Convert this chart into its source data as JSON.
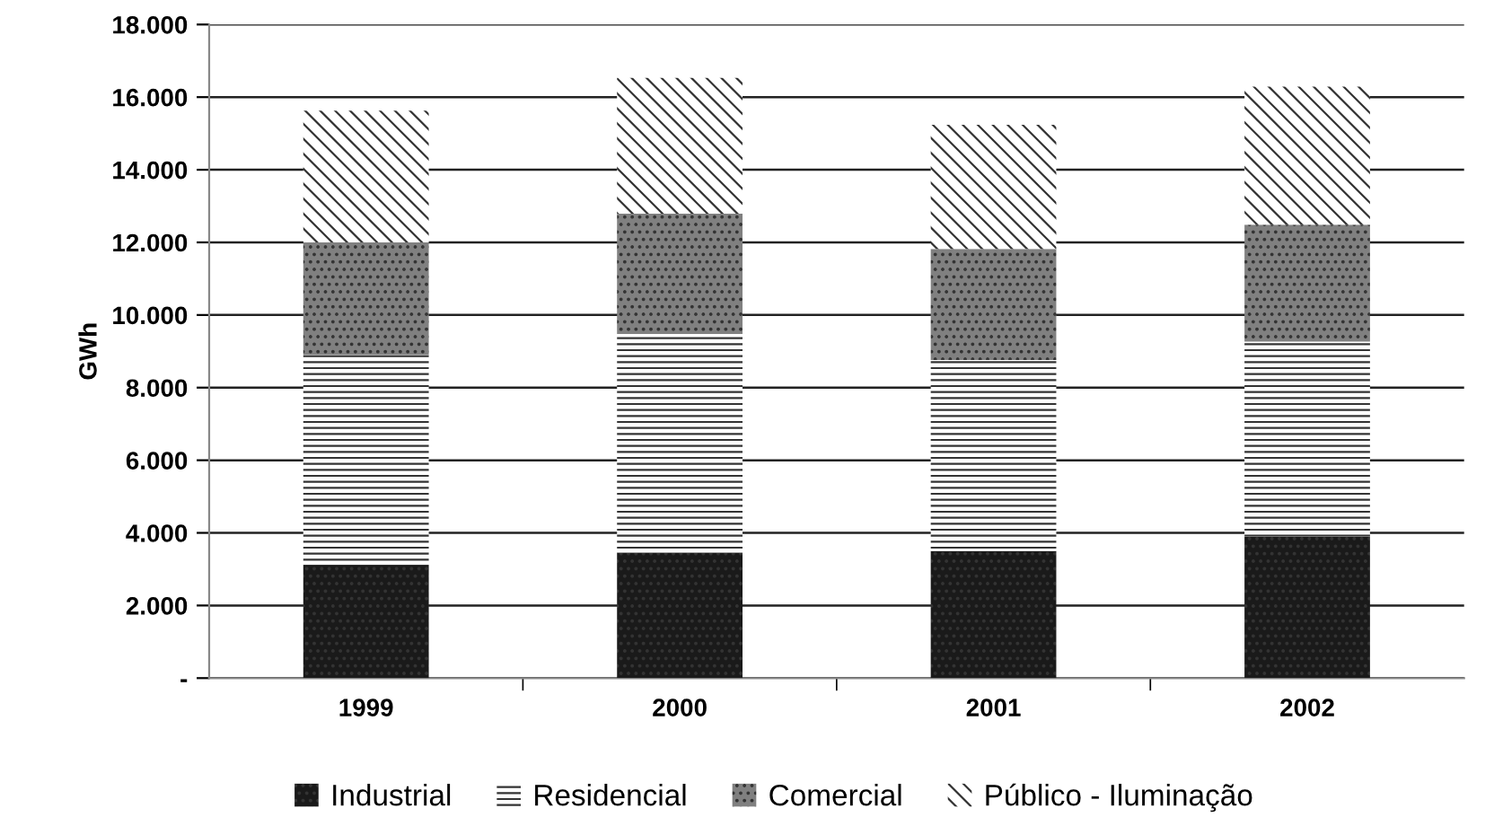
{
  "chart_data": {
    "type": "bar",
    "stacked": true,
    "ylabel": "GWh",
    "categories": [
      "1999",
      "2000",
      "2001",
      "2002"
    ],
    "series": [
      {
        "name": "Industrial",
        "color": "#1a1a1a",
        "values": [
          3100,
          3450,
          3500,
          3900
        ]
      },
      {
        "name": "Residencial",
        "color": "#ffffff",
        "values": [
          5800,
          6030,
          5260,
          5370
        ]
      },
      {
        "name": "Comercial",
        "color": "#808080",
        "values": [
          3100,
          3310,
          3060,
          3220
        ]
      },
      {
        "name": "Público - Iluminação",
        "color": "#ffffff",
        "values": [
          3630,
          3740,
          3420,
          3800
        ]
      }
    ],
    "ylim": [
      0,
      18000
    ],
    "yticks": [
      {
        "value": 0,
        "label": "-"
      },
      {
        "value": 2000,
        "label": "2.000"
      },
      {
        "value": 4000,
        "label": "4.000"
      },
      {
        "value": 6000,
        "label": "6.000"
      },
      {
        "value": 8000,
        "label": "8.000"
      },
      {
        "value": 10000,
        "label": "10.000"
      },
      {
        "value": 12000,
        "label": "12.000"
      },
      {
        "value": 14000,
        "label": "14.000"
      },
      {
        "value": 16000,
        "label": "16.000"
      },
      {
        "value": 18000,
        "label": "18.000"
      }
    ],
    "grid": "y",
    "legend": "bottom"
  }
}
